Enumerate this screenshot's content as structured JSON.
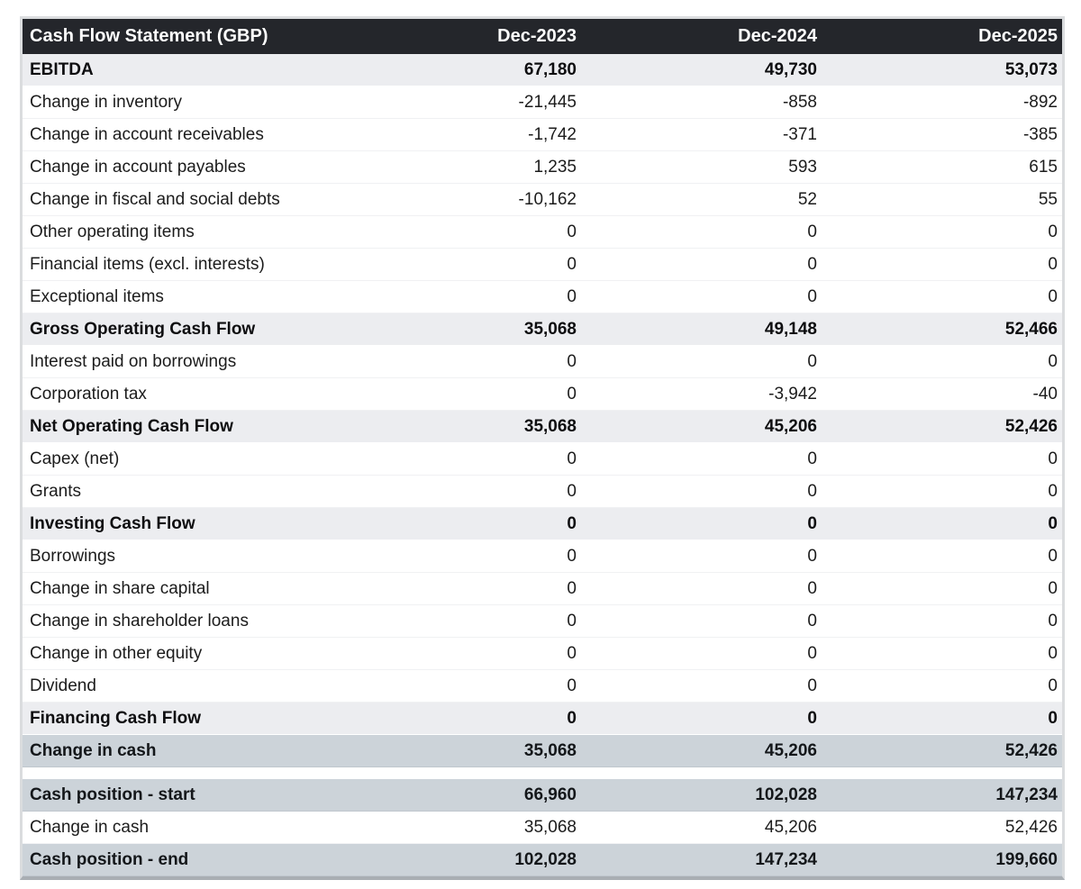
{
  "table": {
    "title": "Cash Flow Statement (GBP)",
    "columns": [
      "Dec-2023",
      "Dec-2024",
      "Dec-2025"
    ],
    "rows": [
      {
        "label": "EBITDA",
        "values": [
          "67,180",
          "49,730",
          "53,073"
        ],
        "type": "total"
      },
      {
        "label": "Change in inventory",
        "values": [
          "-21,445",
          "-858",
          "-892"
        ],
        "type": "normal"
      },
      {
        "label": "Change in account receivables",
        "values": [
          "-1,742",
          "-371",
          "-385"
        ],
        "type": "normal"
      },
      {
        "label": "Change in account payables",
        "values": [
          "1,235",
          "593",
          "615"
        ],
        "type": "normal"
      },
      {
        "label": "Change in fiscal and social debts",
        "values": [
          "-10,162",
          "52",
          "55"
        ],
        "type": "normal"
      },
      {
        "label": "Other operating items",
        "values": [
          "0",
          "0",
          "0"
        ],
        "type": "normal"
      },
      {
        "label": "Financial items (excl. interests)",
        "values": [
          "0",
          "0",
          "0"
        ],
        "type": "normal"
      },
      {
        "label": "Exceptional items",
        "values": [
          "0",
          "0",
          "0"
        ],
        "type": "normal"
      },
      {
        "label": "Gross Operating Cash Flow",
        "values": [
          "35,068",
          "49,148",
          "52,466"
        ],
        "type": "total"
      },
      {
        "label": "Interest paid on borrowings",
        "values": [
          "0",
          "0",
          "0"
        ],
        "type": "normal"
      },
      {
        "label": "Corporation tax",
        "values": [
          "0",
          "-3,942",
          "-40"
        ],
        "type": "normal"
      },
      {
        "label": "Net Operating Cash Flow",
        "values": [
          "35,068",
          "45,206",
          "52,426"
        ],
        "type": "total"
      },
      {
        "label": "Capex (net)",
        "values": [
          "0",
          "0",
          "0"
        ],
        "type": "normal"
      },
      {
        "label": "Grants",
        "values": [
          "0",
          "0",
          "0"
        ],
        "type": "normal"
      },
      {
        "label": "Investing Cash Flow",
        "values": [
          "0",
          "0",
          "0"
        ],
        "type": "total"
      },
      {
        "label": "Borrowings",
        "values": [
          "0",
          "0",
          "0"
        ],
        "type": "normal"
      },
      {
        "label": "Change in share capital",
        "values": [
          "0",
          "0",
          "0"
        ],
        "type": "normal"
      },
      {
        "label": "Change in shareholder loans",
        "values": [
          "0",
          "0",
          "0"
        ],
        "type": "normal"
      },
      {
        "label": "Change in other equity",
        "values": [
          "0",
          "0",
          "0"
        ],
        "type": "normal"
      },
      {
        "label": "Dividend",
        "values": [
          "0",
          "0",
          "0"
        ],
        "type": "normal"
      },
      {
        "label": "Financing Cash Flow",
        "values": [
          "0",
          "0",
          "0"
        ],
        "type": "total"
      },
      {
        "label": "Change in cash",
        "values": [
          "35,068",
          "45,206",
          "52,426"
        ],
        "type": "highlight"
      },
      {
        "label": "",
        "values": [
          "",
          "",
          ""
        ],
        "type": "spacer"
      },
      {
        "label": "Cash position - start",
        "values": [
          "66,960",
          "102,028",
          "147,234"
        ],
        "type": "highlight"
      },
      {
        "label": "Change in cash",
        "values": [
          "35,068",
          "45,206",
          "52,426"
        ],
        "type": "normal"
      },
      {
        "label": "Cash position - end",
        "values": [
          "102,028",
          "147,234",
          "199,660"
        ],
        "type": "highlight"
      }
    ]
  },
  "colors": {
    "header_bg": "#24262b",
    "header_text": "#ffffff",
    "total_row_bg": "#ecedf0",
    "highlight_row_bg": "#ccd3d9",
    "frame_border": "#dadcde",
    "frame_bottom_border": "#a9aeb3",
    "body_text": "#1c1c1c"
  }
}
